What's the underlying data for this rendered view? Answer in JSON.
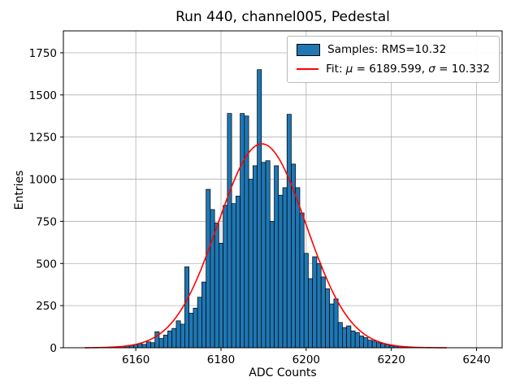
{
  "chart_data": {
    "type": "bar",
    "title": "Run 440, channel005, Pedestal",
    "xlabel": "ADC Counts",
    "ylabel": "Entries",
    "xlim": [
      6143,
      6246
    ],
    "ylim": [
      0,
      1880
    ],
    "xticks": [
      6160,
      6180,
      6200,
      6220,
      6240
    ],
    "yticks": [
      0,
      250,
      500,
      750,
      1000,
      1250,
      1500,
      1750
    ],
    "grid": true,
    "legend_position": "upper right",
    "bar_color": "#1f77b4",
    "bar_edge_color": "#000000",
    "fit_color": "#ff0000",
    "grid_color": "#b0b0b0",
    "bin_width": 1,
    "bins": [
      6157,
      6158,
      6159,
      6160,
      6161,
      6162,
      6163,
      6164,
      6165,
      6166,
      6167,
      6168,
      6169,
      6170,
      6171,
      6172,
      6173,
      6174,
      6175,
      6176,
      6177,
      6178,
      6179,
      6180,
      6181,
      6182,
      6183,
      6184,
      6185,
      6186,
      6187,
      6188,
      6189,
      6190,
      6191,
      6192,
      6193,
      6194,
      6195,
      6196,
      6197,
      6198,
      6199,
      6200,
      6201,
      6202,
      6203,
      6204,
      6205,
      6206,
      6207,
      6208,
      6209,
      6210,
      6211,
      6212,
      6213,
      6214,
      6215,
      6216,
      6217,
      6218,
      6219,
      6220,
      6221,
      6222,
      6223,
      6224
    ],
    "counts": [
      8,
      10,
      14,
      18,
      25,
      20,
      35,
      30,
      95,
      55,
      75,
      100,
      115,
      160,
      140,
      480,
      205,
      235,
      300,
      390,
      940,
      820,
      740,
      620,
      845,
      1390,
      855,
      900,
      1390,
      1375,
      1000,
      1080,
      1650,
      1100,
      1110,
      750,
      1080,
      905,
      950,
      1385,
      1090,
      950,
      800,
      560,
      410,
      540,
      500,
      420,
      350,
      260,
      290,
      150,
      120,
      130,
      100,
      90,
      70,
      60,
      45,
      40,
      30,
      25,
      18,
      12,
      10,
      8,
      5,
      4
    ],
    "fit": {
      "mu": 6189.599,
      "sigma": 10.332,
      "amplitude": 1210,
      "x_start": 6148,
      "x_end": 6233
    },
    "legend": {
      "samples": "Samples: RMS=10.32",
      "fit_prefix": "Fit: ",
      "mu_symbol": "μ",
      "mu_text": " = 6189.599, ",
      "sigma_symbol": "σ",
      "sigma_text": " = 10.332"
    }
  }
}
